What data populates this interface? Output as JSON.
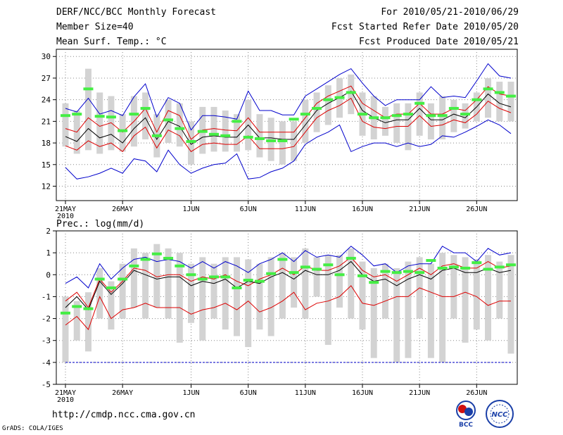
{
  "header": {
    "title": "DERF/NCC/BCC Monthly Forecast",
    "member_size": "Member Size=40",
    "variable": "Mean Surf. Temp.: °C",
    "period": "For 2010/05/21-2010/06/29",
    "started": "Fcst Started Refer Date 2010/05/20",
    "produced": "Fcst Produced Date 2010/05/21"
  },
  "footer": {
    "url": "http://cmdp.ncc.cma.gov.cn",
    "credit": "GrADS: COLA/IGES",
    "logo_bcc": "BCC",
    "logo_ncc": "NCC"
  },
  "colors": {
    "max_line": "#0000cc",
    "min_line": "#0000cc",
    "upper_line": "#dd0000",
    "lower_line": "#dd0000",
    "median_line": "#000000",
    "box": "#d3d3d3",
    "clim_bar": "#44ee44",
    "grid": "#888888"
  },
  "chart_data": [
    {
      "type": "line",
      "title": "Mean Surf. Temp.: °C",
      "ylim": [
        10,
        31
      ],
      "yticks": [
        12,
        15,
        18,
        21,
        24,
        27,
        30
      ],
      "xlim": [
        0,
        40
      ],
      "xticks": [
        {
          "label": "21MAY",
          "sublabel": "2010",
          "day": 0
        },
        {
          "label": "26MAY",
          "sublabel": "",
          "day": 5
        },
        {
          "label": "1JUN",
          "sublabel": "",
          "day": 11
        },
        {
          "label": "6JUN",
          "sublabel": "",
          "day": 16
        },
        {
          "label": "11JUN",
          "sublabel": "",
          "day": 21
        },
        {
          "label": "16JUN",
          "sublabel": "",
          "day": 26
        },
        {
          "label": "21JUN",
          "sublabel": "",
          "day": 31
        },
        {
          "label": "26JUN",
          "sublabel": "",
          "day": 36
        }
      ],
      "series": [
        {
          "name": "max",
          "color_key": "max_line",
          "values": [
            22.8,
            22.3,
            24.2,
            22.0,
            22.5,
            21.8,
            24.4,
            26.2,
            21.6,
            24.3,
            23.5,
            19.8,
            21.8,
            21.8,
            21.6,
            21.3,
            25.2,
            22.5,
            22.5,
            21.9,
            21.9,
            24.5,
            25.5,
            26.5,
            27.5,
            28.3,
            26.3,
            24.5,
            23.2,
            24.0,
            24.0,
            24.0,
            25.8,
            24.3,
            24.5,
            24.3,
            26.6,
            29.0,
            27.3,
            27.0
          ]
        },
        {
          "name": "upper",
          "color_key": "upper_line",
          "values": [
            20.0,
            19.5,
            21.5,
            20.3,
            20.8,
            19.5,
            21.0,
            22.8,
            19.5,
            22.5,
            21.8,
            18.5,
            19.8,
            20.0,
            19.8,
            19.7,
            21.5,
            19.5,
            19.5,
            19.5,
            19.5,
            21.5,
            23.5,
            24.5,
            25.2,
            25.9,
            23.5,
            22.5,
            21.5,
            22.0,
            22.0,
            23.5,
            22.0,
            22.0,
            22.8,
            22.5,
            24.0,
            25.8,
            24.8,
            24.5
          ]
        },
        {
          "name": "median",
          "color_key": "median_line",
          "values": [
            18.9,
            18.2,
            20.0,
            18.7,
            19.2,
            18.0,
            20.0,
            21.5,
            18.5,
            21.0,
            20.3,
            17.8,
            18.8,
            19.0,
            18.8,
            18.8,
            20.5,
            18.7,
            18.7,
            18.5,
            18.5,
            20.5,
            22.5,
            23.5,
            24.3,
            25.2,
            22.5,
            21.5,
            20.8,
            21.2,
            21.2,
            22.8,
            21.2,
            21.2,
            22.0,
            21.5,
            23.0,
            24.8,
            23.5,
            23.0
          ]
        },
        {
          "name": "lower",
          "color_key": "lower_line",
          "values": [
            17.6,
            17.0,
            18.3,
            17.5,
            18.0,
            16.8,
            19.0,
            20.2,
            17.3,
            19.8,
            19.0,
            16.8,
            17.8,
            18.0,
            17.8,
            17.8,
            19.0,
            17.2,
            17.2,
            17.2,
            17.5,
            19.5,
            21.5,
            22.5,
            23.2,
            24.2,
            21.0,
            20.2,
            20.0,
            20.3,
            20.3,
            21.8,
            20.3,
            20.5,
            21.2,
            20.8,
            22.0,
            23.8,
            22.8,
            22.2
          ]
        },
        {
          "name": "min",
          "color_key": "min_line",
          "values": [
            14.6,
            13.0,
            13.3,
            13.8,
            14.5,
            13.8,
            15.8,
            15.5,
            14.0,
            17.0,
            15.0,
            13.8,
            14.5,
            15.0,
            15.2,
            16.5,
            13.0,
            13.2,
            14.0,
            14.5,
            15.5,
            17.8,
            18.8,
            19.5,
            20.5,
            16.8,
            17.5,
            18.0,
            18.0,
            17.5,
            18.0,
            17.5,
            17.8,
            19.0,
            18.8,
            19.5,
            20.3,
            21.2,
            20.5,
            19.3
          ]
        }
      ],
      "boxes": [
        [
          17.5,
          23.5
        ],
        [
          16.5,
          22.5
        ],
        [
          17.0,
          28.3
        ],
        [
          16.5,
          25.0
        ],
        [
          17.0,
          24.5
        ],
        [
          16.8,
          22.0
        ],
        [
          17.5,
          24.5
        ],
        [
          18.5,
          25.0
        ],
        [
          16.0,
          22.0
        ],
        [
          18.0,
          24.0
        ],
        [
          17.5,
          23.5
        ],
        [
          15.0,
          21.0
        ],
        [
          16.5,
          23.0
        ],
        [
          16.8,
          23.0
        ],
        [
          16.8,
          22.5
        ],
        [
          16.8,
          22.0
        ],
        [
          17.0,
          24.0
        ],
        [
          16.0,
          22.0
        ],
        [
          15.5,
          21.5
        ],
        [
          15.0,
          21.0
        ],
        [
          15.5,
          21.0
        ],
        [
          18.0,
          24.0
        ],
        [
          19.5,
          25.0
        ],
        [
          20.5,
          26.0
        ],
        [
          21.5,
          27.0
        ],
        [
          22.0,
          27.5
        ],
        [
          19.0,
          25.0
        ],
        [
          18.5,
          24.5
        ],
        [
          19.0,
          23.0
        ],
        [
          18.0,
          23.5
        ],
        [
          17.0,
          23.5
        ],
        [
          19.0,
          25.0
        ],
        [
          18.5,
          23.5
        ],
        [
          18.5,
          24.5
        ],
        [
          19.5,
          24.0
        ],
        [
          20.0,
          23.5
        ],
        [
          21.0,
          25.0
        ],
        [
          21.5,
          27.0
        ],
        [
          21.0,
          26.5
        ],
        [
          21.0,
          26.5
        ]
      ],
      "climatology": [
        21.8,
        22.0,
        25.5,
        21.7,
        21.6,
        19.7,
        22.0,
        22.8,
        19.0,
        21.2,
        20.0,
        18.2,
        19.6,
        19.2,
        19.0,
        21.0,
        18.8,
        18.6,
        18.3,
        18.3,
        21.3,
        22.0,
        22.8,
        24.0,
        24.3,
        25.0,
        22.0,
        21.5,
        21.5,
        21.8,
        22.0,
        23.5,
        21.8,
        21.8,
        22.8,
        22.0,
        24.0,
        25.5,
        25.0,
        24.5
      ]
    },
    {
      "type": "line",
      "title": "Prec.: log(mm/d)",
      "ylim": [
        -5,
        2
      ],
      "yticks": [
        -5,
        -4,
        -3,
        -2,
        -1,
        0,
        1,
        2
      ],
      "xlim": [
        0,
        40
      ],
      "xticks": [
        {
          "label": "21MAY",
          "sublabel": "2010",
          "day": 0
        },
        {
          "label": "26MAY",
          "sublabel": "",
          "day": 5
        },
        {
          "label": "1JUN",
          "sublabel": "",
          "day": 11
        },
        {
          "label": "6JUN",
          "sublabel": "",
          "day": 16
        },
        {
          "label": "11JUN",
          "sublabel": "",
          "day": 21
        },
        {
          "label": "16JUN",
          "sublabel": "",
          "day": 26
        },
        {
          "label": "21JUN",
          "sublabel": "",
          "day": 31
        },
        {
          "label": "26JUN",
          "sublabel": "",
          "day": 36
        }
      ],
      "baseline": -4.0,
      "series": [
        {
          "name": "max",
          "color_key": "max_line",
          "values": [
            -0.4,
            -0.1,
            -0.6,
            0.5,
            -0.2,
            0.3,
            0.7,
            0.8,
            0.6,
            0.7,
            0.6,
            0.3,
            0.6,
            0.3,
            0.6,
            0.4,
            0.1,
            0.5,
            0.7,
            1.0,
            0.6,
            1.1,
            0.8,
            0.9,
            0.8,
            1.3,
            0.9,
            0.4,
            0.5,
            0.1,
            0.4,
            0.5,
            0.5,
            1.3,
            1.0,
            1.0,
            0.6,
            1.2,
            0.9,
            1.0
          ]
        },
        {
          "name": "upper",
          "color_key": "upper_line",
          "values": [
            -1.2,
            -0.8,
            -1.5,
            -0.2,
            -0.8,
            -0.3,
            0.3,
            0.2,
            -0.1,
            0.0,
            0.0,
            -0.3,
            -0.1,
            -0.2,
            0.0,
            -0.3,
            -0.5,
            -0.2,
            0.0,
            0.3,
            0.0,
            0.4,
            0.2,
            0.2,
            0.4,
            0.8,
            0.2,
            -0.1,
            0.0,
            -0.3,
            0.0,
            0.3,
            0.0,
            0.4,
            0.5,
            0.3,
            0.3,
            0.6,
            0.3,
            0.4
          ]
        },
        {
          "name": "median",
          "color_key": "median_line",
          "values": [
            -1.5,
            -1.0,
            -1.6,
            -0.3,
            -0.9,
            -0.4,
            0.2,
            0.0,
            -0.2,
            -0.1,
            -0.1,
            -0.5,
            -0.3,
            -0.4,
            -0.2,
            -0.6,
            -0.3,
            -0.4,
            -0.1,
            0.1,
            -0.2,
            0.2,
            0.0,
            0.0,
            0.2,
            0.6,
            0.0,
            -0.3,
            -0.2,
            -0.5,
            -0.2,
            0.0,
            -0.2,
            0.2,
            0.3,
            0.1,
            0.1,
            0.3,
            0.1,
            0.2
          ]
        },
        {
          "name": "lower",
          "color_key": "lower_line",
          "values": [
            -2.3,
            -1.9,
            -2.5,
            -1.0,
            -2.0,
            -1.6,
            -1.5,
            -1.3,
            -1.5,
            -1.5,
            -1.5,
            -1.8,
            -1.6,
            -1.5,
            -1.3,
            -1.6,
            -1.2,
            -1.7,
            -1.5,
            -1.2,
            -0.8,
            -1.6,
            -1.3,
            -1.2,
            -1.0,
            -0.5,
            -1.3,
            -1.4,
            -1.2,
            -1.0,
            -1.0,
            -0.6,
            -0.8,
            -1.0,
            -1.0,
            -0.8,
            -1.0,
            -1.4,
            -1.2,
            -1.2
          ]
        },
        {
          "name": "min",
          "color_key": "min_line",
          "values": [
            -4.0,
            -4.0,
            -4.0,
            -4.0,
            -4.0,
            -4.0,
            -4.0,
            -4.0,
            -4.0,
            -4.0,
            -4.0,
            -4.0,
            -4.0,
            -4.0,
            -4.0,
            -4.0,
            -4.0,
            -4.0,
            -4.0,
            -4.0,
            -4.0,
            -4.0,
            -4.0,
            -4.0,
            -4.0,
            -4.0,
            -4.0,
            -4.0,
            -4.0,
            -4.0,
            -4.0,
            -4.0,
            -4.0,
            -4.0,
            -4.0,
            -4.0,
            -4.0,
            -4.0,
            -4.0,
            -4.0
          ]
        }
      ],
      "boxes": [
        [
          -4.0,
          -1.0
        ],
        [
          -3.0,
          -1.2
        ],
        [
          -3.5,
          -0.8
        ],
        [
          -2.0,
          0.3
        ],
        [
          -2.5,
          -0.3
        ],
        [
          -2.0,
          0.5
        ],
        [
          -1.5,
          1.2
        ],
        [
          -2.0,
          1.0
        ],
        [
          -1.5,
          1.4
        ],
        [
          -2.0,
          1.2
        ],
        [
          -3.1,
          1.0
        ],
        [
          -2.2,
          0.5
        ],
        [
          -3.0,
          0.8
        ],
        [
          -2.0,
          0.5
        ],
        [
          -2.5,
          0.8
        ],
        [
          -2.8,
          0.8
        ],
        [
          -3.3,
          0.7
        ],
        [
          -2.5,
          0.5
        ],
        [
          -2.8,
          0.8
        ],
        [
          -2.0,
          1.0
        ],
        [
          -1.5,
          0.8
        ],
        [
          -2.0,
          1.2
        ],
        [
          -1.0,
          0.8
        ],
        [
          -3.2,
          0.9
        ],
        [
          -1.5,
          0.9
        ],
        [
          -2.0,
          1.2
        ],
        [
          -2.5,
          0.6
        ],
        [
          -3.8,
          0.3
        ],
        [
          -2.0,
          0.5
        ],
        [
          -4.0,
          0.3
        ],
        [
          -3.8,
          0.6
        ],
        [
          -2.0,
          0.8
        ],
        [
          -3.8,
          0.5
        ],
        [
          -4.0,
          1.0
        ],
        [
          -2.0,
          0.9
        ],
        [
          -3.1,
          0.8
        ],
        [
          -2.5,
          0.7
        ],
        [
          -3.0,
          0.9
        ],
        [
          -2.0,
          0.6
        ],
        [
          -3.6,
          0.9
        ]
      ],
      "climatology": [
        -1.75,
        -1.45,
        -1.55,
        -0.2,
        -0.6,
        -0.2,
        0.4,
        0.7,
        0.95,
        0.75,
        0.4,
        0.0,
        -0.2,
        -0.1,
        -0.1,
        -0.6,
        -0.25,
        -0.3,
        0.05,
        0.7,
        0.1,
        0.35,
        0.25,
        0.45,
        0.0,
        0.75,
        -0.05,
        -0.35,
        0.15,
        0.1,
        0.15,
        0.1,
        0.65,
        0.3,
        0.35,
        0.3,
        0.55,
        0.25,
        0.35,
        0.45
      ]
    }
  ]
}
